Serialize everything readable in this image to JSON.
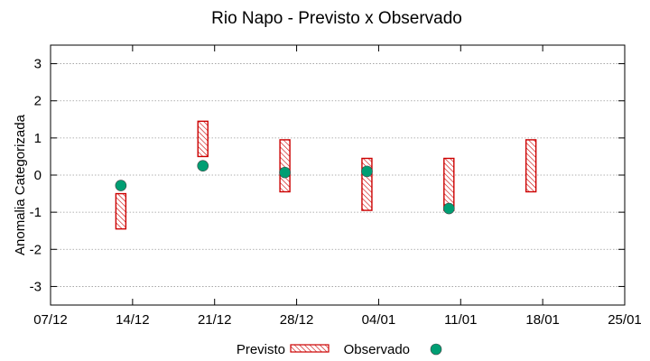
{
  "chart_data": {
    "type": "floating-bar-and-scatter",
    "title": "Rio Napo - Previsto x Observado",
    "ylabel": "Anomalia Categorizada",
    "xlabel": "",
    "ylim": [
      -3.5,
      3.5
    ],
    "yticks": [
      -3,
      -2,
      -1,
      0,
      1,
      2,
      3
    ],
    "ytick_labels": [
      "-3",
      "-2",
      "-1",
      "0",
      "1",
      "2",
      "3"
    ],
    "xlim": [
      0,
      49
    ],
    "xticks": [
      0,
      7,
      14,
      21,
      28,
      35,
      42,
      49
    ],
    "xtick_labels": [
      "07/12",
      "14/12",
      "21/12",
      "28/12",
      "04/01",
      "11/01",
      "18/01",
      "25/01"
    ],
    "grid": "horizontal-dotted",
    "legend_position": "bottom-center",
    "colors": {
      "previsto": "#cc0000",
      "observado": "#009e73"
    },
    "series": [
      {
        "name": "Previsto",
        "kind": "range-bar",
        "points": [
          {
            "x": 6,
            "low": -1.45,
            "high": -0.5
          },
          {
            "x": 13,
            "low": 0.5,
            "high": 1.45
          },
          {
            "x": 20,
            "low": -0.45,
            "high": 0.95
          },
          {
            "x": 27,
            "low": -0.95,
            "high": 0.45
          },
          {
            "x": 34,
            "low": -0.95,
            "high": 0.45
          },
          {
            "x": 41,
            "low": -0.45,
            "high": 0.95
          }
        ]
      },
      {
        "name": "Observado",
        "kind": "scatter",
        "points": [
          {
            "x": 6,
            "y": -0.28
          },
          {
            "x": 13,
            "y": 0.25
          },
          {
            "x": 20,
            "y": 0.07
          },
          {
            "x": 27,
            "y": 0.1
          },
          {
            "x": 34,
            "y": -0.9
          }
        ]
      }
    ]
  }
}
